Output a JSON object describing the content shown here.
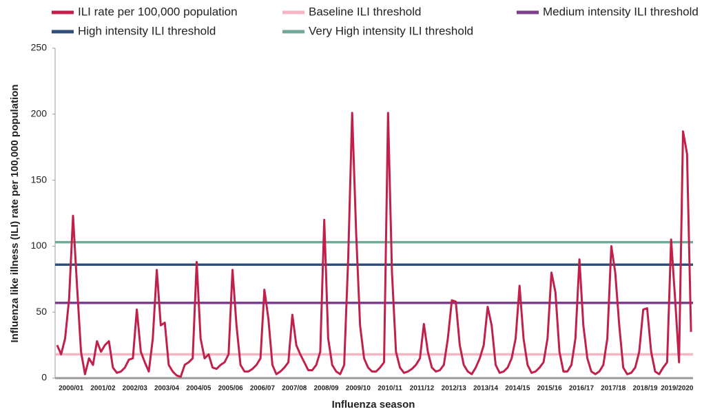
{
  "chart_data": {
    "type": "line",
    "y_label": "Influenza like illness (ILI) rate per 100,000 population",
    "x_label": "Influenza season",
    "categories": [
      null,
      null,
      null,
      null,
      "2000/01",
      null,
      null,
      null,
      null,
      null,
      null,
      null,
      "2001/02",
      null,
      null,
      null,
      null,
      null,
      null,
      null,
      "2002/03",
      null,
      null,
      null,
      null,
      null,
      null,
      null,
      "2003/04",
      null,
      null,
      null,
      null,
      null,
      null,
      null,
      "2004/05",
      null,
      null,
      null,
      null,
      null,
      null,
      null,
      "2005/06",
      null,
      null,
      null,
      null,
      null,
      null,
      null,
      "2006/07",
      null,
      null,
      null,
      null,
      null,
      null,
      null,
      "2007/08",
      null,
      null,
      null,
      null,
      null,
      null,
      null,
      "2008/09",
      null,
      null,
      null,
      null,
      null,
      null,
      null,
      "2009/10",
      null,
      null,
      null,
      null,
      null,
      null,
      null,
      "2010/11",
      null,
      null,
      null,
      null,
      null,
      null,
      null,
      "2011/12",
      null,
      null,
      null,
      null,
      null,
      null,
      null,
      "2012/13",
      null,
      null,
      null,
      null,
      null,
      null,
      null,
      "2013/14",
      null,
      null,
      null,
      null,
      null,
      null,
      null,
      "2014/15",
      null,
      null,
      null,
      null,
      null,
      null,
      null,
      "2015/16",
      null,
      null,
      null,
      null,
      null,
      null,
      null,
      "2016/17",
      null,
      null,
      null,
      null,
      null,
      null,
      null,
      "2017/18",
      null,
      null,
      null,
      null,
      null,
      null,
      null,
      "2018/19",
      null,
      null,
      null,
      null,
      null,
      null,
      null,
      "2019/2020",
      null,
      null,
      null
    ],
    "series": [
      {
        "name": "ILI rate per 100,000 population",
        "color": "#c0204a",
        "values": [
          25,
          18,
          30,
          60,
          123,
          70,
          20,
          3,
          15,
          10,
          28,
          20,
          25,
          28,
          8,
          4,
          5,
          8,
          14,
          15,
          52,
          20,
          12,
          5,
          30,
          82,
          40,
          42,
          10,
          5,
          2,
          1,
          10,
          12,
          15,
          88,
          30,
          15,
          18,
          8,
          7,
          10,
          12,
          18,
          82,
          40,
          10,
          5,
          5,
          7,
          10,
          15,
          67,
          45,
          10,
          3,
          5,
          8,
          12,
          48,
          25,
          18,
          12,
          6,
          6,
          10,
          20,
          120,
          30,
          10,
          5,
          3,
          10,
          90,
          201,
          110,
          40,
          15,
          8,
          5,
          5,
          8,
          12,
          201,
          80,
          20,
          8,
          4,
          5,
          7,
          10,
          15,
          41,
          20,
          8,
          5,
          6,
          10,
          30,
          59,
          58,
          25,
          10,
          5,
          3,
          8,
          15,
          25,
          54,
          40,
          10,
          4,
          5,
          8,
          15,
          30,
          70,
          30,
          10,
          4,
          5,
          8,
          12,
          30,
          80,
          65,
          20,
          5,
          5,
          10,
          30,
          90,
          40,
          15,
          5,
          3,
          5,
          10,
          30,
          100,
          80,
          40,
          8,
          3,
          4,
          8,
          20,
          52,
          53,
          20,
          5,
          3,
          8,
          12,
          105,
          60,
          12,
          187,
          170,
          35
        ]
      }
    ],
    "thresholds": [
      {
        "name": "Baseline ILI threshold",
        "color": "#f4b6c2",
        "value": 18
      },
      {
        "name": "Medium intensity ILI threshold",
        "color": "#7b3f8c",
        "value": 57
      },
      {
        "name": "High intensity ILI threshold",
        "color": "#2f4f7a",
        "value": 86
      },
      {
        "name": "Very High intensity ILI threshold",
        "color": "#6fa99a",
        "value": 103
      }
    ],
    "ylim": [
      0,
      250
    ],
    "yticks": [
      0,
      50,
      100,
      150,
      200,
      250
    ],
    "grid": false
  }
}
